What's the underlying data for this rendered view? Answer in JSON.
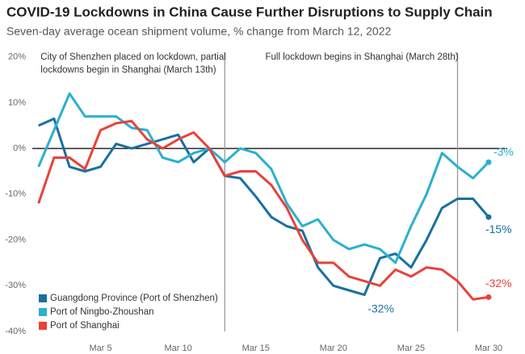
{
  "chart_data": {
    "type": "line",
    "title": "COVID-19 Lockdowns in China Cause Further Disruptions to Supply Chain",
    "subtitle": "Seven-day average ocean shipment volume, % change from March 12, 2022",
    "x": [
      1,
      2,
      3,
      4,
      5,
      6,
      7,
      8,
      9,
      10,
      11,
      12,
      13,
      14,
      15,
      16,
      17,
      18,
      19,
      20,
      21,
      22,
      23,
      24,
      25,
      26,
      27,
      28,
      29,
      30
    ],
    "xlim": [
      0.6,
      31.2
    ],
    "xticks": [
      {
        "value": 5,
        "label": "Mar 5"
      },
      {
        "value": 10,
        "label": "Mar 10"
      },
      {
        "value": 15,
        "label": "Mar 15"
      },
      {
        "value": 20,
        "label": "Mar 20"
      },
      {
        "value": 25,
        "label": "Mar 25"
      },
      {
        "value": 30,
        "label": "Mar 30"
      }
    ],
    "ylim": [
      -40,
      21
    ],
    "yticks": [
      {
        "value": 20,
        "label": "20%"
      },
      {
        "value": 10,
        "label": "10%"
      },
      {
        "value": 0,
        "label": "0%"
      },
      {
        "value": -10,
        "label": "-10%"
      },
      {
        "value": -20,
        "label": "-20%"
      },
      {
        "value": -30,
        "label": "-30%"
      },
      {
        "value": -40,
        "label": "-40%"
      }
    ],
    "grid": false,
    "legend": "lower left",
    "series": [
      {
        "name": "Guangdong Province (Port of Shenzhen)",
        "color": "#1a6fa0",
        "values": [
          5,
          6.5,
          -4,
          -5,
          -4,
          1,
          0,
          1,
          2,
          3,
          -3,
          0,
          -6,
          -6.5,
          -10.5,
          -15,
          -17,
          -18,
          -26,
          -30,
          -31,
          -32,
          -24,
          -23,
          -26,
          -20,
          -13,
          -11,
          -11,
          -15
        ]
      },
      {
        "name": "Port of Ningbo-Zhoushan",
        "color": "#2bb0d0",
        "values": [
          -4,
          4,
          12,
          7,
          7,
          7,
          4.5,
          4,
          -2,
          -3,
          -1,
          0,
          -3,
          0,
          -1,
          -4.5,
          -12,
          -17,
          -15.5,
          -20,
          -22,
          -21,
          -22,
          -25,
          -17,
          -10,
          -1,
          -4,
          -6.5,
          -3
        ]
      },
      {
        "name": "Port of Shanghai",
        "color": "#e8423a",
        "values": [
          -12,
          -2,
          -2,
          -4.5,
          4,
          5.5,
          6,
          2,
          0,
          2,
          3.5,
          0,
          -6,
          -5,
          -5,
          -8,
          -13,
          -20,
          -25,
          -25,
          -28,
          -29,
          -30,
          -26.5,
          -28,
          -26,
          -26.5,
          -29,
          -33,
          -32.5
        ]
      }
    ],
    "events": [
      {
        "x": 13,
        "label": [
          "City of Shenzhen placed on lockdown, partial",
          "lockdowns begin in Shanghai (March 13th)"
        ]
      },
      {
        "x": 28,
        "label": [
          "Full lockdown begins in Shanghai (March 28th)"
        ]
      }
    ],
    "annotations": [
      {
        "text": "-3%",
        "x": 30,
        "y": -3
      },
      {
        "text": "-15%",
        "x": 30,
        "y": -15
      },
      {
        "text": "-32%",
        "x": 30,
        "y": -32.5
      },
      {
        "text": "-32%",
        "x": 22,
        "y": -32
      }
    ]
  }
}
